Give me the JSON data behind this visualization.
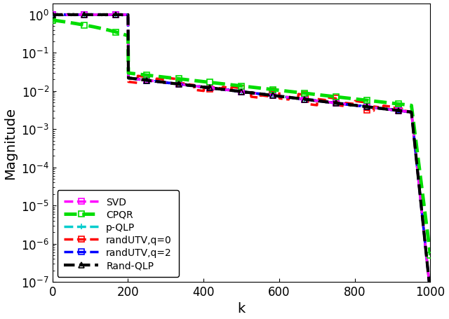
{
  "n": 1000,
  "xlabel": "k",
  "ylabel": "Magnitude",
  "xlim": [
    0,
    1000
  ],
  "ymin": 1e-07,
  "ymax": 2.0,
  "legend_entries": [
    "SVD",
    "CPQR",
    "p-QLP",
    "randUTV,q=0",
    "randUTV,q=2",
    "Rand-QLP"
  ],
  "line_colors": [
    "#ff00ff",
    "#00dd00",
    "#00cccc",
    "#ff0000",
    "#0000ff",
    "#000000"
  ],
  "markers": [
    "s",
    "s",
    "+",
    "s",
    "s",
    "^"
  ],
  "linestyles": [
    "--",
    "--",
    "--",
    "--",
    "--",
    "--"
  ],
  "linewidths": [
    2.5,
    3.5,
    2.5,
    2.5,
    2.5,
    3.0
  ],
  "marker_size": 6,
  "legend_loc": "lower left",
  "legend_fontsize": 10,
  "tick_labelsize": 12,
  "axis_labelsize": 14,
  "flat_region_end": 200,
  "step_drop_val": 0.022,
  "plateau_end": 950,
  "plateau_end_val": 0.0028,
  "tail_end_val": 5e-08,
  "cpqr_start": 0.72,
  "cpqr_end_flat": 0.28
}
